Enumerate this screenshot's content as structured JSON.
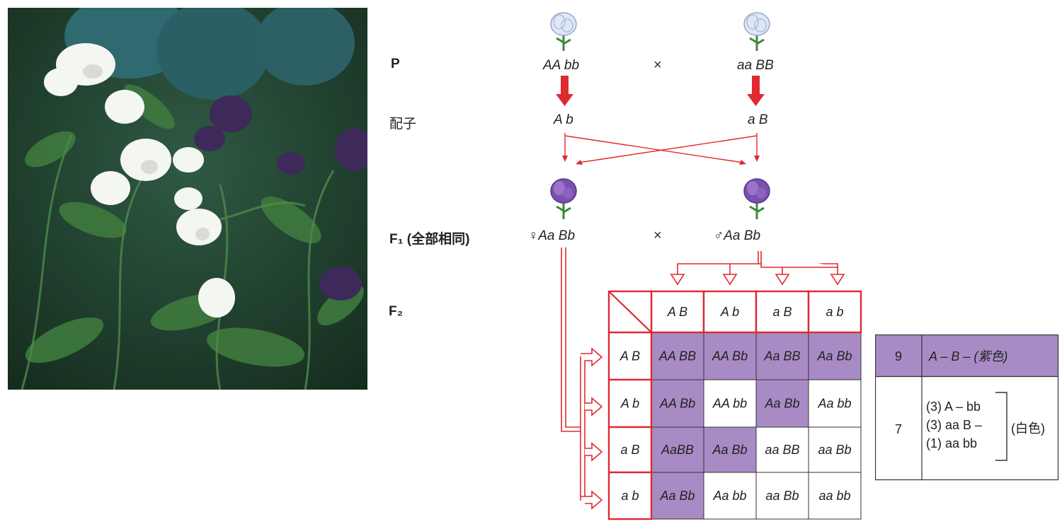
{
  "photo": {
    "description_name": "sweet-pea-photo"
  },
  "rows": {
    "p_label": "P",
    "gamete_label": "配子",
    "f1_label": "F₁ (全部相同)",
    "f2_label": "F₂"
  },
  "parents": {
    "left_genotype": "AA bb",
    "right_genotype": "aa BB",
    "cross_symbol": "×",
    "left_gamete": "A b",
    "right_gamete": "a B"
  },
  "f1": {
    "female_genotype": "♀Aa Bb",
    "male_genotype": "♂Aa Bb",
    "cross_symbol": "×"
  },
  "punnett": {
    "col_headers": [
      "A B",
      "A b",
      "a B",
      "a b"
    ],
    "row_headers": [
      "A B",
      "A b",
      "a B",
      "a b"
    ],
    "cells": [
      [
        "AA BB",
        "AA Bb",
        "Aa BB",
        "Aa Bb"
      ],
      [
        "AA Bb",
        "AA bb",
        "Aa Bb",
        "Aa bb"
      ],
      [
        "AaBB",
        "Aa Bb",
        "aa BB",
        "aa Bb"
      ],
      [
        "Aa Bb",
        "Aa bb",
        "aa Bb",
        "aa bb"
      ]
    ],
    "purple_mask": [
      [
        true,
        true,
        true,
        true
      ],
      [
        true,
        false,
        true,
        false
      ],
      [
        true,
        true,
        false,
        false
      ],
      [
        true,
        false,
        false,
        false
      ]
    ]
  },
  "summary": {
    "purple_count": "9",
    "purple_text": "A – B – (紫色)",
    "white_count": "7",
    "white_lines": [
      "(3) A – bb",
      "(3) aa B –",
      "(1) aa bb"
    ],
    "white_label": "(白色)"
  },
  "colors": {
    "red": "#e02a30",
    "purple_cell": "#a88bc4",
    "purple_flower": "#7a4fb0",
    "white_flower": "#dfe6f5"
  }
}
